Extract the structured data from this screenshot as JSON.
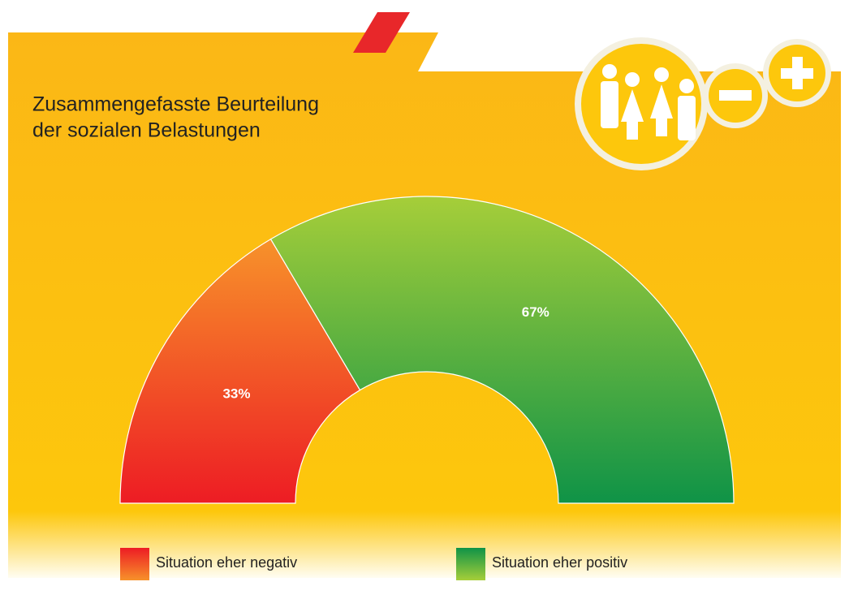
{
  "chart_data": {
    "type": "semidonut",
    "title": [
      "Zusammengefasste Beurteilung",
      "der sozialen Belastungen"
    ],
    "categories": [
      "Situation eher negativ",
      "Situation eher positiv"
    ],
    "values": [
      33,
      67
    ],
    "value_labels": [
      "33%",
      "67%"
    ],
    "colors": [
      [
        "#f7922a",
        "#ed1c24"
      ],
      [
        "#a6ce39",
        "#0f9347"
      ]
    ]
  }
}
